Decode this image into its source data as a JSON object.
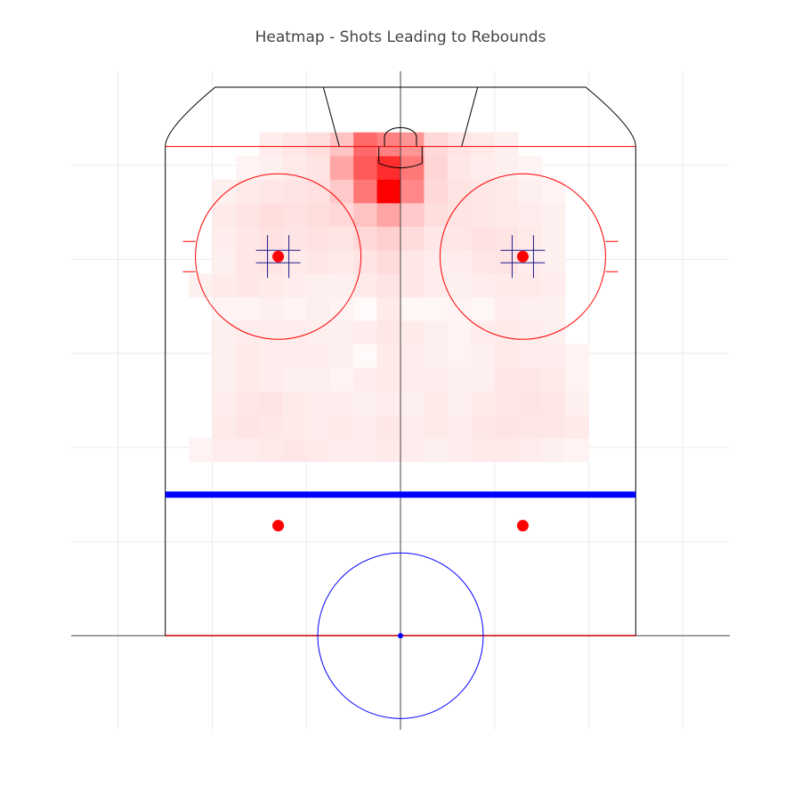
{
  "chart_data": {
    "type": "heatmap",
    "title": "Heatmap - Shots Leading to Rebounds",
    "xlabel": "",
    "ylabel": "",
    "xlim": [
      -35,
      35
    ],
    "ylim": [
      -10,
      60
    ],
    "grid": true,
    "legend": "none",
    "colorscale": {
      "low": "#ffffff",
      "high": "#ff0000"
    },
    "rink": {
      "boards_left_x": -25,
      "boards_right_x": 25,
      "center_line_y": 0,
      "blue_line_y": 15,
      "goal_line_y": 52,
      "end_boards_y": 58.3,
      "corner_radius": 5.3,
      "center_circle_radius": 8.8,
      "faceoff_circle_radius": 8.8,
      "faceoff_dots": [
        {
          "x": -13,
          "y": 40.3,
          "zone": "end-zone"
        },
        {
          "x": 13,
          "y": 40.3,
          "zone": "end-zone"
        },
        {
          "x": -13,
          "y": 11.7,
          "zone": "neutral-zone"
        },
        {
          "x": 13,
          "y": 11.7,
          "zone": "neutral-zone"
        }
      ],
      "trapezoid_net_x": [
        -6.5,
        6.5
      ],
      "trapezoid_end_x": [
        -8.2,
        8.2
      ],
      "crease_half_width": 2.3,
      "crease_depth": 1.8,
      "net_half_width": 1.7,
      "net_depth": 1.0
    },
    "bins": {
      "x_edges_start": -22.5,
      "bin_width": 2.5,
      "y_edges_start": 18.5,
      "bin_height": 2.5,
      "nx": 18,
      "ny": 14
    },
    "z": [
      [
        4,
        6,
        6,
        7,
        8,
        7,
        6,
        6,
        7,
        6,
        5,
        6,
        7,
        7,
        6,
        5,
        4,
        0
      ],
      [
        0,
        7,
        9,
        8,
        7,
        6,
        7,
        6,
        8,
        6,
        7,
        6,
        8,
        9,
        8,
        8,
        7,
        0
      ],
      [
        0,
        6,
        8,
        9,
        7,
        6,
        6,
        5,
        6,
        5,
        7,
        5,
        7,
        8,
        9,
        8,
        5,
        0
      ],
      [
        0,
        5,
        7,
        6,
        5,
        5,
        4,
        6,
        7,
        6,
        6,
        5,
        5,
        8,
        8,
        7,
        4,
        0
      ],
      [
        0,
        5,
        7,
        6,
        6,
        6,
        5,
        2,
        7,
        6,
        5,
        4,
        5,
        7,
        6,
        6,
        4,
        0
      ],
      [
        0,
        5,
        6,
        6,
        6,
        5,
        5,
        6,
        8,
        7,
        5,
        4,
        6,
        7,
        6,
        5,
        0,
        0
      ],
      [
        0,
        4,
        4,
        5,
        4,
        5,
        4,
        2,
        7,
        3,
        3,
        4,
        3,
        6,
        5,
        5,
        0,
        0
      ],
      [
        5,
        7,
        8,
        7,
        6,
        5,
        5,
        7,
        9,
        8,
        6,
        5,
        6,
        7,
        7,
        6,
        0,
        0
      ],
      [
        0,
        5,
        8,
        9,
        7,
        8,
        7,
        9,
        12,
        8,
        6,
        6,
        8,
        9,
        6,
        5,
        0,
        0
      ],
      [
        0,
        6,
        8,
        10,
        9,
        10,
        9,
        13,
        16,
        12,
        8,
        8,
        10,
        9,
        7,
        5,
        0,
        0
      ],
      [
        0,
        7,
        9,
        11,
        10,
        11,
        13,
        20,
        30,
        18,
        11,
        9,
        8,
        7,
        6,
        5,
        0,
        0
      ],
      [
        0,
        5,
        7,
        8,
        9,
        10,
        18,
        45,
        85,
        40,
        13,
        9,
        8,
        7,
        5,
        4,
        0,
        0
      ],
      [
        0,
        0,
        4,
        5,
        7,
        9,
        30,
        55,
        70,
        45,
        14,
        8,
        6,
        5,
        4,
        0,
        0,
        0
      ],
      [
        0,
        0,
        0,
        6,
        8,
        11,
        20,
        50,
        42,
        35,
        13,
        9,
        7,
        5,
        0,
        0,
        0,
        0
      ]
    ]
  }
}
